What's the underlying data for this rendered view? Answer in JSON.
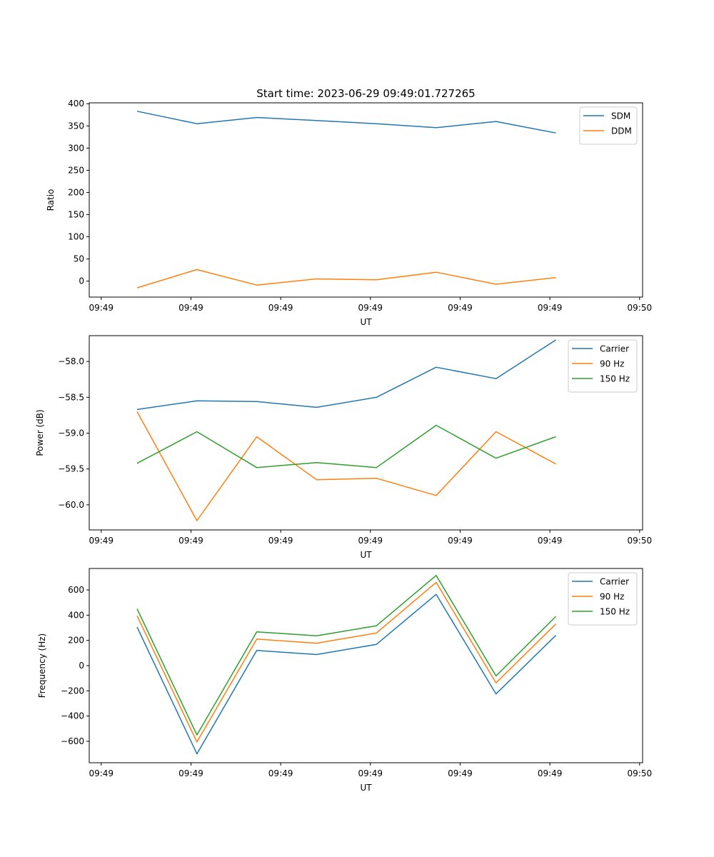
{
  "colors": {
    "c0": "#1f77b4",
    "c1": "#ff7f0e",
    "c2": "#2ca02c"
  },
  "chart_data": [
    {
      "type": "line",
      "title": "Start time: 2023-06-29 09:49:01.727265",
      "xlabel": "UT",
      "ylabel": "Ratio",
      "x": [
        1,
        2,
        3,
        4,
        5,
        6,
        7,
        8
      ],
      "xlim": [
        0.2,
        9.45
      ],
      "xticks": [
        0.4,
        1.9,
        3.4,
        4.9,
        6.4,
        7.9,
        9.4
      ],
      "xtick_labels": [
        "09:49",
        "09:49",
        "09:49",
        "09:49",
        "09:49",
        "09:49",
        "09:50"
      ],
      "ylim": [
        -36,
        402
      ],
      "yticks": [
        0,
        50,
        100,
        150,
        200,
        250,
        300,
        350,
        400
      ],
      "ytick_labels": [
        "0",
        "50",
        "100",
        "150",
        "200",
        "250",
        "300",
        "350",
        "400"
      ],
      "legend": "top-right",
      "series": [
        {
          "name": "SDM",
          "color": "#1f77b4",
          "values": [
            383,
            355,
            369,
            362,
            355,
            346,
            360,
            334
          ]
        },
        {
          "name": "DDM",
          "color": "#ff7f0e",
          "values": [
            -15,
            26,
            -9,
            5,
            3,
            20,
            -7,
            8
          ]
        }
      ]
    },
    {
      "type": "line",
      "title": "",
      "xlabel": "UT",
      "ylabel": "Power (dB)",
      "x": [
        1,
        2,
        3,
        4,
        5,
        6,
        7,
        8
      ],
      "xlim": [
        0.2,
        9.45
      ],
      "xticks": [
        0.4,
        1.9,
        3.4,
        4.9,
        6.4,
        7.9,
        9.4
      ],
      "xtick_labels": [
        "09:49",
        "09:49",
        "09:49",
        "09:49",
        "09:49",
        "09:49",
        "09:50"
      ],
      "ylim": [
        -60.35,
        -57.64
      ],
      "yticks": [
        -60.0,
        -59.5,
        -59.0,
        -58.5,
        -58.0
      ],
      "ytick_labels": [
        "−60.0",
        "−59.5",
        "−59.0",
        "−58.5",
        "−58.0"
      ],
      "legend": "top-right",
      "series": [
        {
          "name": "Carrier",
          "color": "#1f77b4",
          "values": [
            -58.67,
            -58.55,
            -58.56,
            -58.64,
            -58.5,
            -58.08,
            -58.24,
            -57.7
          ]
        },
        {
          "name": "90 Hz",
          "color": "#ff7f0e",
          "values": [
            -58.7,
            -60.22,
            -59.05,
            -59.65,
            -59.63,
            -59.87,
            -58.98,
            -59.43
          ]
        },
        {
          "name": "150 Hz",
          "color": "#2ca02c",
          "values": [
            -59.42,
            -58.98,
            -59.48,
            -59.41,
            -59.48,
            -58.89,
            -59.35,
            -59.05
          ]
        }
      ]
    },
    {
      "type": "line",
      "title": "",
      "xlabel": "UT",
      "ylabel": "Frequency (Hz)",
      "x": [
        1,
        2,
        3,
        4,
        5,
        6,
        7,
        8
      ],
      "xlim": [
        0.2,
        9.45
      ],
      "xticks": [
        0.4,
        1.9,
        3.4,
        4.9,
        6.4,
        7.9,
        9.4
      ],
      "xtick_labels": [
        "09:49",
        "09:49",
        "09:49",
        "09:49",
        "09:49",
        "09:49",
        "09:50"
      ],
      "ylim": [
        -770,
        770
      ],
      "yticks": [
        -600,
        -400,
        -200,
        0,
        200,
        400,
        600
      ],
      "ytick_labels": [
        "−600",
        "−400",
        "−200",
        "0",
        "200",
        "400",
        "600"
      ],
      "legend": "top-right",
      "series": [
        {
          "name": "Carrier",
          "color": "#1f77b4",
          "values": [
            305,
            -700,
            120,
            88,
            168,
            565,
            -225,
            240
          ]
        },
        {
          "name": "90 Hz",
          "color": "#ff7f0e",
          "values": [
            395,
            -605,
            210,
            178,
            258,
            660,
            -137,
            330
          ]
        },
        {
          "name": "150 Hz",
          "color": "#2ca02c",
          "values": [
            450,
            -550,
            268,
            236,
            316,
            715,
            -82,
            390
          ]
        }
      ]
    }
  ]
}
